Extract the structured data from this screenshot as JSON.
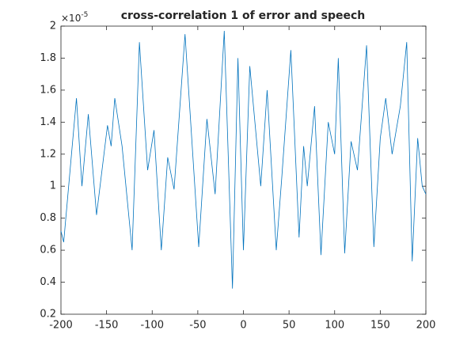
{
  "chart_data": {
    "type": "line",
    "title": "cross-correlation 1 of error and speech",
    "y_multiplier": {
      "base": "×10",
      "exponent": "-5"
    },
    "x": [
      -200,
      -197,
      -190,
      -183,
      -177,
      -170,
      -161,
      -149,
      -145,
      -141,
      -133,
      -122,
      -114,
      -105,
      -98,
      -90,
      -83,
      -76,
      -64,
      -49,
      -40,
      -31,
      -21,
      -12,
      -6,
      0,
      7,
      19,
      26,
      36,
      42,
      52,
      61,
      66,
      70,
      78,
      85,
      93,
      100,
      104,
      111,
      118,
      125,
      135,
      143,
      150,
      156,
      163,
      172,
      179,
      185,
      191,
      196,
      200
    ],
    "series": [
      {
        "color": "#0072bd",
        "values": [
          0.72,
          0.65,
          1.1,
          1.55,
          1.0,
          1.45,
          0.82,
          1.38,
          1.25,
          1.55,
          1.25,
          0.6,
          1.9,
          1.1,
          1.35,
          0.6,
          1.18,
          0.98,
          1.95,
          0.62,
          1.42,
          0.95,
          1.97,
          0.36,
          1.8,
          0.6,
          1.75,
          1.0,
          1.6,
          0.6,
          1.05,
          1.85,
          0.68,
          1.25,
          1.0,
          1.5,
          0.57,
          1.4,
          1.2,
          1.8,
          0.58,
          1.28,
          1.1,
          1.88,
          0.62,
          1.3,
          1.55,
          1.2,
          1.5,
          1.9,
          0.53,
          1.3,
          1.0,
          0.95
        ]
      }
    ],
    "xlim": [
      -200,
      200
    ],
    "xticks": [
      -200,
      -150,
      -100,
      -50,
      0,
      50,
      100,
      150,
      200
    ],
    "ylim": [
      0.2,
      2
    ],
    "yticks": [
      0.2,
      0.4,
      0.6,
      0.8,
      1,
      1.2,
      1.4,
      1.6,
      1.8,
      2
    ],
    "grid": false
  }
}
